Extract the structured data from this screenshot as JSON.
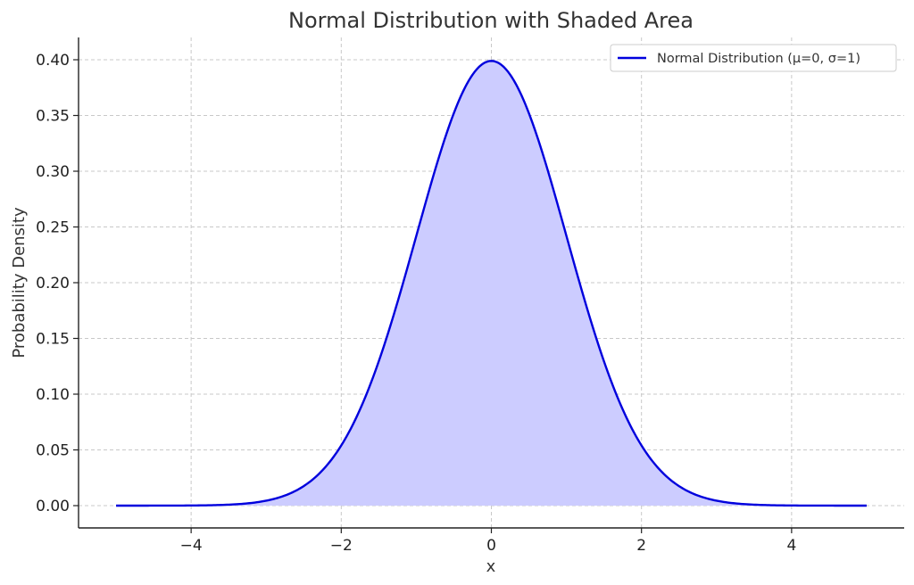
{
  "chart_data": {
    "type": "area",
    "title": "Normal Distribution with Shaded Area",
    "xlabel": "x",
    "ylabel": "Probability Density",
    "xlim": [
      -5.5,
      5.5
    ],
    "ylim": [
      -0.02,
      0.42
    ],
    "x_ticks": [
      -4,
      -2,
      0,
      2,
      4
    ],
    "x_tick_labels": [
      "−4",
      "−2",
      "0",
      "2",
      "4"
    ],
    "y_ticks": [
      0.0,
      0.05,
      0.1,
      0.15,
      0.2,
      0.25,
      0.3,
      0.35,
      0.4
    ],
    "y_tick_labels": [
      "0.00",
      "0.05",
      "0.10",
      "0.15",
      "0.20",
      "0.25",
      "0.30",
      "0.35",
      "0.40"
    ],
    "grid": true,
    "legend_position": "top-right",
    "series": [
      {
        "name": "Normal Distribution (μ=0, σ=1)",
        "color": "#0000dd",
        "fill_color": "#ccccff",
        "x": [
          -5.0,
          -4.5,
          -4.0,
          -3.5,
          -3.0,
          -2.75,
          -2.5,
          -2.25,
          -2.0,
          -1.75,
          -1.5,
          -1.25,
          -1.0,
          -0.75,
          -0.5,
          -0.25,
          0.0,
          0.25,
          0.5,
          0.75,
          1.0,
          1.25,
          1.5,
          1.75,
          2.0,
          2.25,
          2.5,
          2.75,
          3.0,
          3.5,
          4.0,
          4.5,
          5.0
        ],
        "y": [
          0.0,
          0.0,
          0.0001,
          0.0009,
          0.0044,
          0.0091,
          0.0175,
          0.0317,
          0.054,
          0.0863,
          0.1295,
          0.1826,
          0.242,
          0.3011,
          0.3521,
          0.3867,
          0.3989,
          0.3867,
          0.3521,
          0.3011,
          0.242,
          0.1826,
          0.1295,
          0.0863,
          0.054,
          0.0317,
          0.0175,
          0.0091,
          0.0044,
          0.0009,
          0.0001,
          0.0,
          0.0
        ]
      }
    ]
  }
}
